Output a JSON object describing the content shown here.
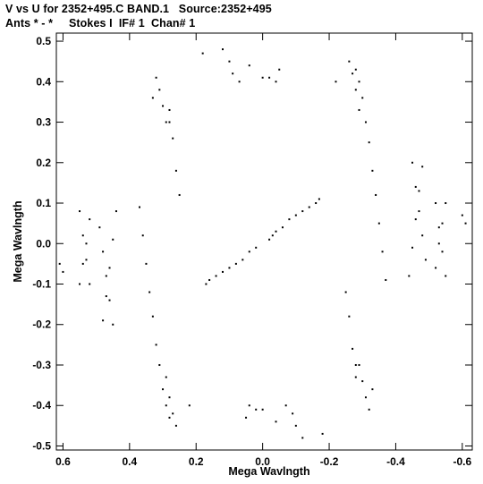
{
  "header": {
    "line1": "V vs U for 2352+495.C BAND.1   Source:2352+495",
    "line2": "Ants * - *     Stokes I  IF# 1  Chan# 1"
  },
  "chart_data": {
    "type": "scatter",
    "title": "V vs U for 2352+495.C BAND.1   Source:2352+495",
    "subtitle": "Ants * - *     Stokes I  IF# 1  Chan# 1",
    "xlabel": "Mega Wavlngth",
    "ylabel": "Mega Wavlngth",
    "xlim": [
      0.62,
      -0.63
    ],
    "ylim": [
      -0.51,
      0.52
    ],
    "x_reversed": true,
    "x_ticks": [
      "0.6",
      "0.4",
      "0.2",
      "0.0",
      "-0.2",
      "-0.4",
      "-0.6"
    ],
    "x_tick_values": [
      0.6,
      0.4,
      0.2,
      0.0,
      -0.2,
      -0.4,
      -0.6
    ],
    "y_ticks": [
      "0.5",
      "0.4",
      "0.3",
      "0.2",
      "0.1",
      "0.0",
      "-0.1",
      "-0.2",
      "-0.3",
      "-0.4",
      "-0.5"
    ],
    "y_tick_values": [
      0.5,
      0.4,
      0.3,
      0.2,
      0.1,
      0.0,
      -0.1,
      -0.2,
      -0.3,
      -0.4,
      -0.5
    ],
    "grid": false,
    "marker_color": "#000000",
    "arms": [
      {
        "u": [
          -0.02,
          -0.03,
          -0.04,
          -0.06,
          -0.08,
          -0.1,
          -0.12,
          -0.14,
          -0.16,
          -0.17
        ],
        "v": [
          0.01,
          0.02,
          0.03,
          0.04,
          0.06,
          0.07,
          0.08,
          0.09,
          0.1,
          0.11
        ]
      },
      {
        "u": [
          0.02,
          0.04,
          0.06,
          0.08,
          0.1,
          0.12,
          0.14,
          0.16,
          0.17
        ],
        "v": [
          -0.01,
          -0.02,
          -0.04,
          -0.05,
          -0.06,
          -0.07,
          -0.08,
          -0.09,
          -0.1
        ]
      }
    ],
    "points": [
      [
        0.37,
        0.09
      ],
      [
        0.36,
        0.02
      ],
      [
        0.35,
        -0.05
      ],
      [
        0.34,
        -0.12
      ],
      [
        0.33,
        -0.18
      ],
      [
        0.44,
        0.08
      ],
      [
        0.45,
        0.01
      ],
      [
        0.46,
        -0.06
      ],
      [
        0.47,
        -0.13
      ],
      [
        0.48,
        -0.19
      ],
      [
        0.52,
        0.06
      ],
      [
        0.53,
        0.0
      ],
      [
        0.54,
        -0.05
      ],
      [
        0.55,
        -0.1
      ],
      [
        0.6,
        -0.07
      ],
      [
        0.28,
        0.33
      ],
      [
        0.28,
        0.3
      ],
      [
        0.27,
        0.26
      ],
      [
        0.26,
        0.18
      ],
      [
        0.25,
        0.12
      ],
      [
        0.29,
        -0.33
      ],
      [
        0.28,
        -0.38
      ],
      [
        0.27,
        -0.42
      ],
      [
        0.26,
        -0.45
      ],
      [
        0.22,
        -0.4
      ],
      [
        -0.28,
        0.43
      ],
      [
        -0.29,
        0.4
      ],
      [
        -0.3,
        0.36
      ],
      [
        -0.31,
        0.3
      ],
      [
        -0.32,
        0.25
      ],
      [
        -0.29,
        -0.3
      ],
      [
        -0.3,
        -0.34
      ],
      [
        -0.31,
        -0.38
      ],
      [
        -0.32,
        -0.41
      ],
      [
        -0.33,
        -0.36
      ],
      [
        -0.45,
        0.2
      ],
      [
        -0.46,
        0.14
      ],
      [
        -0.47,
        0.08
      ],
      [
        -0.48,
        0.02
      ],
      [
        -0.49,
        -0.04
      ],
      [
        -0.52,
        0.1
      ],
      [
        -0.53,
        0.04
      ],
      [
        -0.54,
        -0.02
      ],
      [
        -0.55,
        -0.08
      ],
      [
        -0.61,
        0.05
      ],
      [
        0.12,
        0.48
      ],
      [
        0.1,
        0.45
      ],
      [
        0.09,
        0.42
      ],
      [
        0.07,
        0.4
      ],
      [
        0.0,
        0.41
      ],
      [
        0.05,
        -0.43
      ],
      [
        0.04,
        -0.4
      ],
      [
        0.02,
        -0.41
      ],
      [
        -0.04,
        -0.44
      ],
      [
        -0.18,
        -0.47
      ]
    ]
  }
}
